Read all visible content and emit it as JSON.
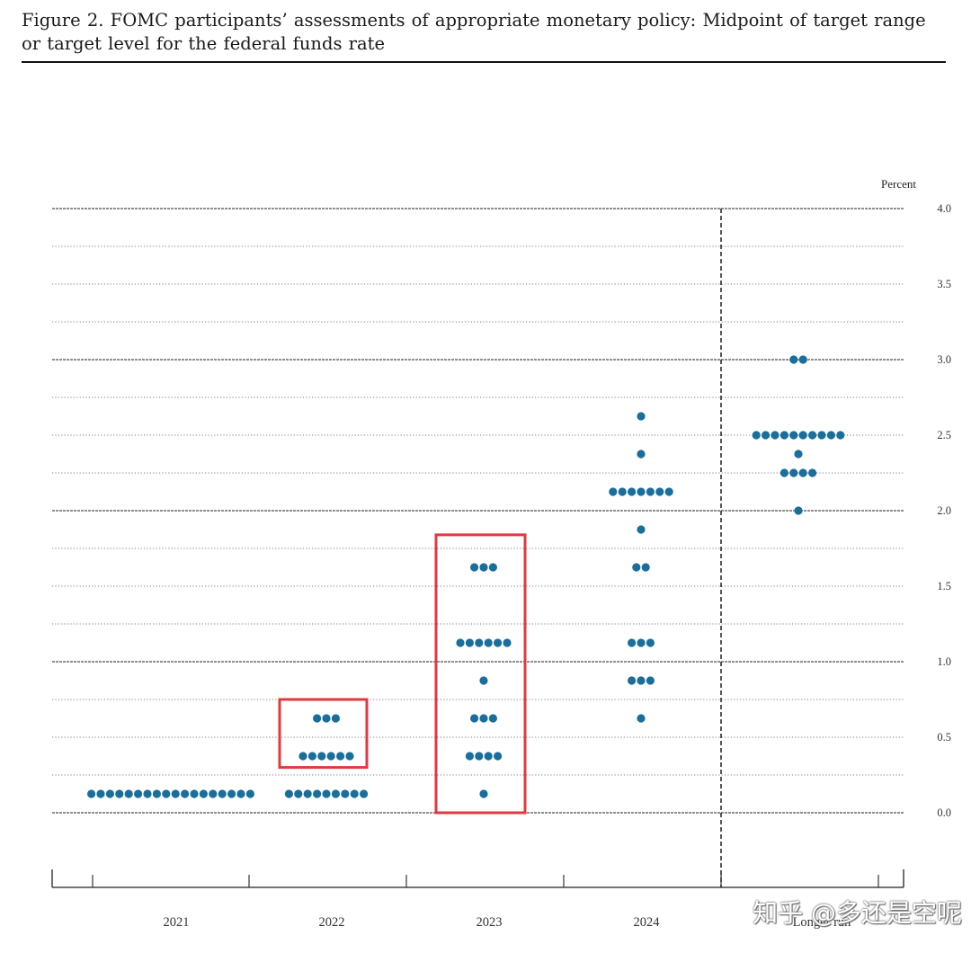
{
  "figure": {
    "title": "Figure 2.  FOMC participants’ assessments of appropriate monetary policy:  Midpoint of target range or target level for the federal funds rate"
  },
  "watermark": "知乎 @多还是空呢",
  "colors": {
    "dot": "#1a6e9c",
    "highlight": "#e0393e",
    "grid": "#555555"
  },
  "chart_data": {
    "type": "scatter",
    "ylabel": "Percent",
    "ylim": [
      0,
      4
    ],
    "yticks": [
      "0.0",
      "0.5",
      "1.0",
      "1.5",
      "2.0",
      "2.5",
      "3.0",
      "3.5",
      "4.0"
    ],
    "categories": [
      "2021",
      "2022",
      "2023",
      "2024",
      "Longer run"
    ],
    "dots": [
      {
        "x": "2021",
        "y": 0.125,
        "count": 18
      },
      {
        "x": "2022",
        "y": 0.125,
        "count": 9
      },
      {
        "x": "2022",
        "y": 0.375,
        "count": 6
      },
      {
        "x": "2022",
        "y": 0.625,
        "count": 3
      },
      {
        "x": "2023",
        "y": 0.125,
        "count": 1
      },
      {
        "x": "2023",
        "y": 0.375,
        "count": 4
      },
      {
        "x": "2023",
        "y": 0.625,
        "count": 3
      },
      {
        "x": "2023",
        "y": 0.875,
        "count": 1
      },
      {
        "x": "2023",
        "y": 1.125,
        "count": 6
      },
      {
        "x": "2023",
        "y": 1.625,
        "count": 3
      },
      {
        "x": "2024",
        "y": 0.625,
        "count": 1
      },
      {
        "x": "2024",
        "y": 0.875,
        "count": 3
      },
      {
        "x": "2024",
        "y": 1.125,
        "count": 3
      },
      {
        "x": "2024",
        "y": 1.625,
        "count": 2
      },
      {
        "x": "2024",
        "y": 1.875,
        "count": 1
      },
      {
        "x": "2024",
        "y": 2.125,
        "count": 7
      },
      {
        "x": "2024",
        "y": 2.375,
        "count": 1
      },
      {
        "x": "2024",
        "y": 2.625,
        "count": 1
      },
      {
        "x": "Longer run",
        "y": 2.0,
        "count": 1
      },
      {
        "x": "Longer run",
        "y": 2.25,
        "count": 4
      },
      {
        "x": "Longer run",
        "y": 2.375,
        "count": 1
      },
      {
        "x": "Longer run",
        "y": 2.5,
        "count": 10
      },
      {
        "x": "Longer run",
        "y": 3.0,
        "count": 2
      }
    ],
    "highlights": [
      {
        "category": "2022",
        "y_range": [
          0.3,
          0.75
        ]
      },
      {
        "category": "2023",
        "y_range": [
          0.0,
          1.84
        ]
      }
    ],
    "vertical_divider": {
      "between": [
        "2024",
        "Longer run"
      ],
      "style": "dashed"
    },
    "grid": true
  }
}
